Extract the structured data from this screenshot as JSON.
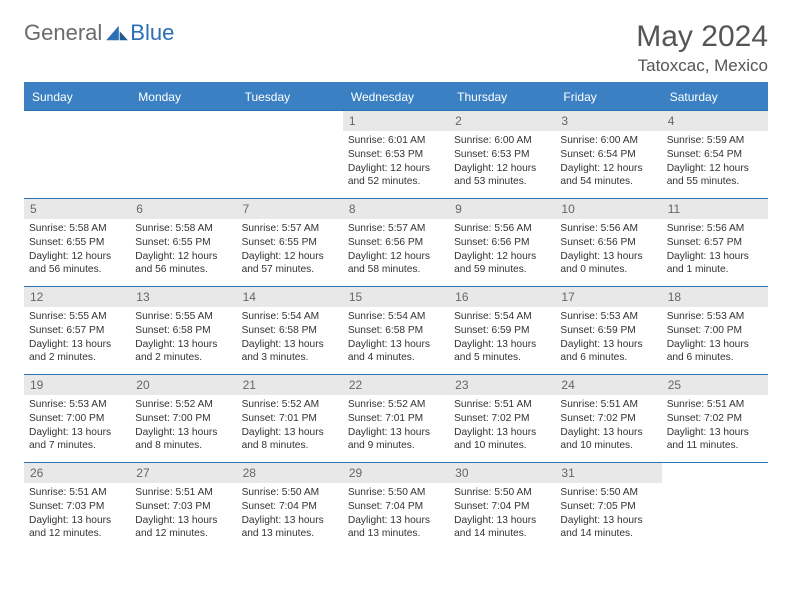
{
  "brand": {
    "word1": "General",
    "word2": "Blue"
  },
  "header": {
    "month_title": "May 2024",
    "location": "Tatoxcac, Mexico"
  },
  "style": {
    "header_bg": "#3a80c2",
    "border_color": "#2b6fb5",
    "daynum_bg": "#e8e8e8",
    "text_color": "#333333",
    "muted_text": "#666666",
    "page_bg": "#ffffff"
  },
  "day_names": [
    "Sunday",
    "Monday",
    "Tuesday",
    "Wednesday",
    "Thursday",
    "Friday",
    "Saturday"
  ],
  "calendar": {
    "first_weekday_index": 3,
    "days": [
      {
        "n": 1,
        "sunrise": "6:01 AM",
        "sunset": "6:53 PM",
        "daylight": "12 hours and 52 minutes."
      },
      {
        "n": 2,
        "sunrise": "6:00 AM",
        "sunset": "6:53 PM",
        "daylight": "12 hours and 53 minutes."
      },
      {
        "n": 3,
        "sunrise": "6:00 AM",
        "sunset": "6:54 PM",
        "daylight": "12 hours and 54 minutes."
      },
      {
        "n": 4,
        "sunrise": "5:59 AM",
        "sunset": "6:54 PM",
        "daylight": "12 hours and 55 minutes."
      },
      {
        "n": 5,
        "sunrise": "5:58 AM",
        "sunset": "6:55 PM",
        "daylight": "12 hours and 56 minutes."
      },
      {
        "n": 6,
        "sunrise": "5:58 AM",
        "sunset": "6:55 PM",
        "daylight": "12 hours and 56 minutes."
      },
      {
        "n": 7,
        "sunrise": "5:57 AM",
        "sunset": "6:55 PM",
        "daylight": "12 hours and 57 minutes."
      },
      {
        "n": 8,
        "sunrise": "5:57 AM",
        "sunset": "6:56 PM",
        "daylight": "12 hours and 58 minutes."
      },
      {
        "n": 9,
        "sunrise": "5:56 AM",
        "sunset": "6:56 PM",
        "daylight": "12 hours and 59 minutes."
      },
      {
        "n": 10,
        "sunrise": "5:56 AM",
        "sunset": "6:56 PM",
        "daylight": "13 hours and 0 minutes."
      },
      {
        "n": 11,
        "sunrise": "5:56 AM",
        "sunset": "6:57 PM",
        "daylight": "13 hours and 1 minute."
      },
      {
        "n": 12,
        "sunrise": "5:55 AM",
        "sunset": "6:57 PM",
        "daylight": "13 hours and 2 minutes."
      },
      {
        "n": 13,
        "sunrise": "5:55 AM",
        "sunset": "6:58 PM",
        "daylight": "13 hours and 2 minutes."
      },
      {
        "n": 14,
        "sunrise": "5:54 AM",
        "sunset": "6:58 PM",
        "daylight": "13 hours and 3 minutes."
      },
      {
        "n": 15,
        "sunrise": "5:54 AM",
        "sunset": "6:58 PM",
        "daylight": "13 hours and 4 minutes."
      },
      {
        "n": 16,
        "sunrise": "5:54 AM",
        "sunset": "6:59 PM",
        "daylight": "13 hours and 5 minutes."
      },
      {
        "n": 17,
        "sunrise": "5:53 AM",
        "sunset": "6:59 PM",
        "daylight": "13 hours and 6 minutes."
      },
      {
        "n": 18,
        "sunrise": "5:53 AM",
        "sunset": "7:00 PM",
        "daylight": "13 hours and 6 minutes."
      },
      {
        "n": 19,
        "sunrise": "5:53 AM",
        "sunset": "7:00 PM",
        "daylight": "13 hours and 7 minutes."
      },
      {
        "n": 20,
        "sunrise": "5:52 AM",
        "sunset": "7:00 PM",
        "daylight": "13 hours and 8 minutes."
      },
      {
        "n": 21,
        "sunrise": "5:52 AM",
        "sunset": "7:01 PM",
        "daylight": "13 hours and 8 minutes."
      },
      {
        "n": 22,
        "sunrise": "5:52 AM",
        "sunset": "7:01 PM",
        "daylight": "13 hours and 9 minutes."
      },
      {
        "n": 23,
        "sunrise": "5:51 AM",
        "sunset": "7:02 PM",
        "daylight": "13 hours and 10 minutes."
      },
      {
        "n": 24,
        "sunrise": "5:51 AM",
        "sunset": "7:02 PM",
        "daylight": "13 hours and 10 minutes."
      },
      {
        "n": 25,
        "sunrise": "5:51 AM",
        "sunset": "7:02 PM",
        "daylight": "13 hours and 11 minutes."
      },
      {
        "n": 26,
        "sunrise": "5:51 AM",
        "sunset": "7:03 PM",
        "daylight": "13 hours and 12 minutes."
      },
      {
        "n": 27,
        "sunrise": "5:51 AM",
        "sunset": "7:03 PM",
        "daylight": "13 hours and 12 minutes."
      },
      {
        "n": 28,
        "sunrise": "5:50 AM",
        "sunset": "7:04 PM",
        "daylight": "13 hours and 13 minutes."
      },
      {
        "n": 29,
        "sunrise": "5:50 AM",
        "sunset": "7:04 PM",
        "daylight": "13 hours and 13 minutes."
      },
      {
        "n": 30,
        "sunrise": "5:50 AM",
        "sunset": "7:04 PM",
        "daylight": "13 hours and 14 minutes."
      },
      {
        "n": 31,
        "sunrise": "5:50 AM",
        "sunset": "7:05 PM",
        "daylight": "13 hours and 14 minutes."
      }
    ]
  },
  "labels": {
    "sunrise": "Sunrise:",
    "sunset": "Sunset:",
    "daylight": "Daylight:"
  }
}
